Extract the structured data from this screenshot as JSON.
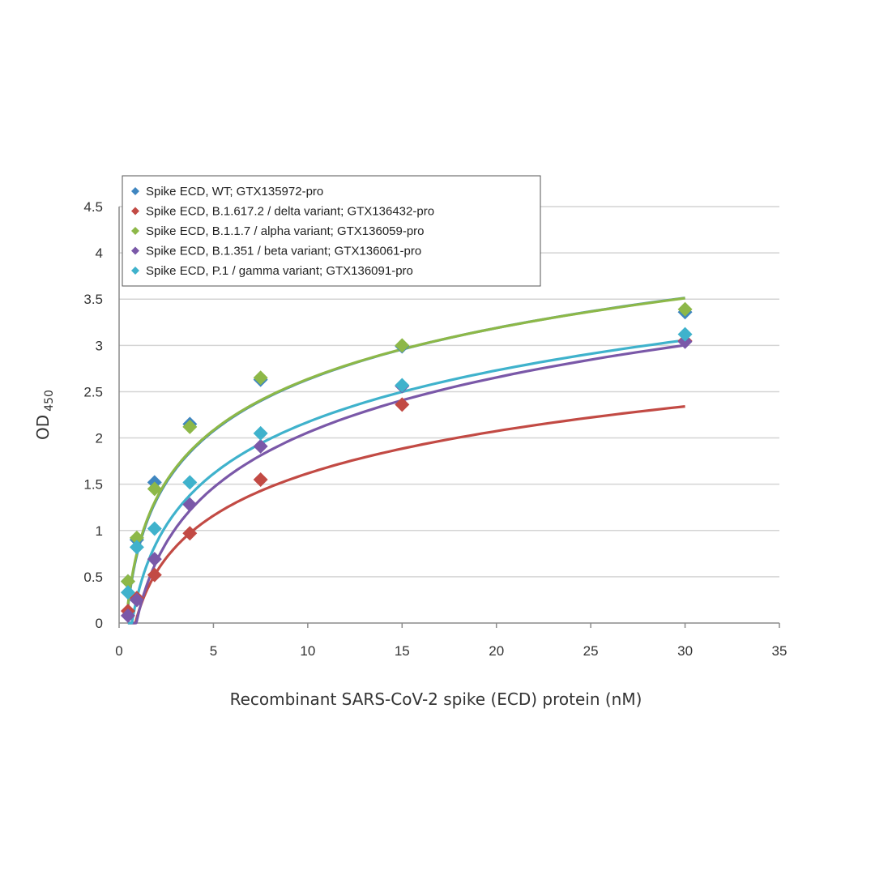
{
  "chart_data": {
    "type": "scatter",
    "title": "",
    "xlabel": "Recombinant SARS-CoV-2 spike (ECD) protein (nM)",
    "ylabel": "OD",
    "ylabel_subscript": "450",
    "xlim": [
      0,
      35
    ],
    "ylim": [
      0,
      4.5
    ],
    "x_ticks": [
      "0",
      "5",
      "10",
      "15",
      "20",
      "25",
      "30",
      "35"
    ],
    "y_ticks": [
      "0",
      "0.5",
      "1",
      "1.5",
      "2",
      "2.5",
      "3",
      "3.5",
      "4",
      "4.5"
    ],
    "grid": "horizontal",
    "legend_position": "top-left",
    "marker": "diamond",
    "fit_curve": "log",
    "series": [
      {
        "name": "Spike ECD, WT; GTX135972-pro",
        "color": "#3f86c0",
        "x": [
          0.47,
          0.94,
          1.88,
          3.75,
          7.5,
          15,
          30
        ],
        "y": [
          0.45,
          0.9,
          1.52,
          2.15,
          2.63,
          2.99,
          3.36
        ],
        "fit": [
          0.7826,
          0.803
        ]
      },
      {
        "name": "Spike ECD, B.1.617.2 / delta variant; GTX136432-pro",
        "color": "#c24a44",
        "x": [
          0.47,
          0.94,
          1.88,
          3.75,
          7.5,
          15,
          30
        ],
        "y": [
          0.13,
          0.27,
          0.52,
          0.97,
          1.55,
          2.36,
          3.05
        ],
        "fit": [
          0.0994,
          0.6591
        ]
      },
      {
        "name": "Spike ECD, B.1.1.7 / alpha variant; GTX136059-pro",
        "color": "#8db848",
        "x": [
          0.47,
          0.94,
          1.88,
          3.75,
          7.5,
          15,
          30
        ],
        "y": [
          0.45,
          0.92,
          1.45,
          2.12,
          2.65,
          3.0,
          3.39
        ],
        "fit": [
          0.8015,
          0.7966
        ]
      },
      {
        "name": "Spike ECD, B.1.351 / beta variant; GTX136061-pro",
        "color": "#7a58a8",
        "x": [
          0.47,
          0.94,
          1.88,
          3.75,
          7.5,
          15,
          30
        ],
        "y": [
          0.08,
          0.25,
          0.69,
          1.28,
          1.91,
          2.56,
          3.04
        ],
        "fit": [
          0.0796,
          0.8593
        ]
      },
      {
        "name": "Spike ECD, P.1 / gamma variant; GTX136091-pro",
        "color": "#3fb2cc",
        "x": [
          0.47,
          0.94,
          1.88,
          3.75,
          7.5,
          15,
          30
        ],
        "y": [
          0.33,
          0.82,
          1.02,
          1.52,
          2.05,
          2.57,
          3.12
        ],
        "fit": [
          0.3163,
          0.8056
        ]
      }
    ]
  }
}
